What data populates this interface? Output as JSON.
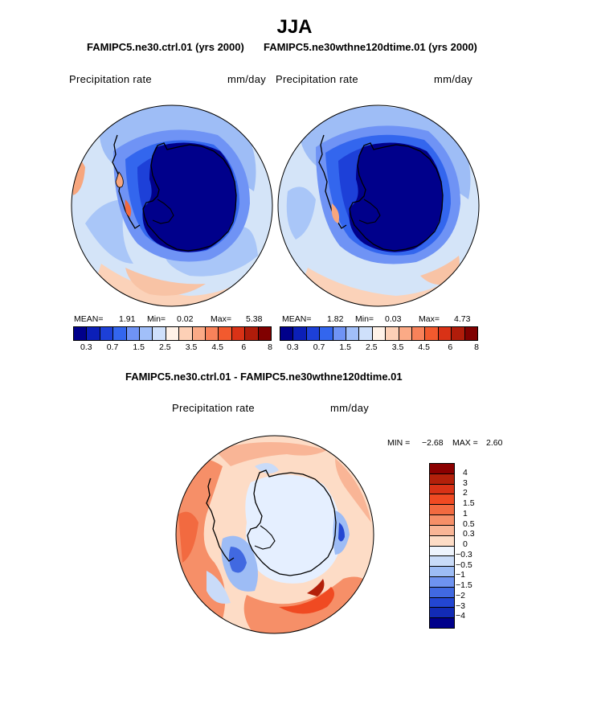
{
  "title": "JJA",
  "subtitle_left": "FAMIPC5.ne30.ctrl.01 (yrs 2000)",
  "subtitle_right": "FAMIPC5.ne30wthne120dtime.01 (yrs 2000)",
  "diff_title": "FAMIPC5.ne30.ctrl.01 - FAMIPC5.ne30wthne120dtime.01",
  "variable_label": "Precipitation rate",
  "units_label": "mm/day",
  "panel_left_stats": {
    "mean_label": "MEAN=",
    "mean": "1.91",
    "min_label": "Min=",
    "min": "0.02",
    "max_label": "Max=",
    "max": "5.38"
  },
  "panel_right_stats": {
    "mean_label": "MEAN=",
    "mean": "1.82",
    "min_label": "Min=",
    "min": "0.03",
    "max_label": "Max=",
    "max": "4.73"
  },
  "diff_stats": {
    "min_label": "MIN =",
    "min": "−2.68",
    "max_label": "MAX =",
    "max": "2.60"
  },
  "colorbar_top": {
    "tick_labels": [
      "0.3",
      "0.7",
      "1.5",
      "2.5",
      "3.5",
      "4.5",
      "6",
      "8"
    ],
    "colors": [
      "#00008b",
      "#0b1fb8",
      "#1d40d8",
      "#3366ee",
      "#6f93f5",
      "#a1bff9",
      "#cfe0fb",
      "#fff2e8",
      "#fdd0b6",
      "#fbaa86",
      "#f8825a",
      "#f25a2e",
      "#d93216",
      "#b01c0a",
      "#800000"
    ]
  },
  "colorbar_diff": {
    "tick_labels": [
      "4",
      "3",
      "2",
      "1.5",
      "1",
      "0.5",
      "0.3",
      "0",
      "−0.3",
      "−0.5",
      "−1",
      "−1.5",
      "−2",
      "−3",
      "−4"
    ],
    "colors": [
      "#8b0000",
      "#b3200a",
      "#d93216",
      "#f04a22",
      "#f26a40",
      "#f68f68",
      "#f9b596",
      "#fddcc6",
      "#eef4fd",
      "#c9dbf8",
      "#9dbcf5",
      "#6f93f0",
      "#4169e1",
      "#2346d2",
      "#122bb5",
      "#00008b"
    ]
  },
  "map_colors": {
    "background": "#ffffff",
    "ocean_light": "#d4e4f8",
    "blue_mid": "#6f93f5",
    "blue_deep": "#1d40d8",
    "antarctic_core": "#00008b",
    "warm_light": "#fbd2b9",
    "warm_mid": "#f8825a",
    "coast": "#000000"
  }
}
